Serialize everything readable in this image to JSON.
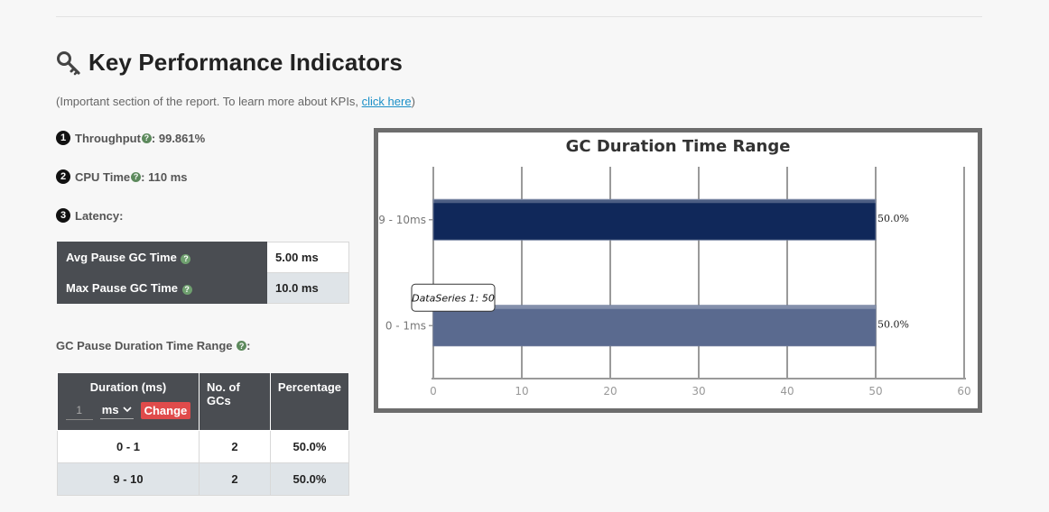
{
  "header": {
    "title": "Key Performance Indicators",
    "intro_prefix": "(Important section of the report. To learn more about KPIs, ",
    "intro_link": "click here",
    "intro_suffix": ")"
  },
  "kpis": {
    "throughput": {
      "num": "1",
      "label": "Throughput",
      "value": " : 99.861%"
    },
    "cpu": {
      "num": "2",
      "label": "CPU Time",
      "value": " : 110 ms"
    },
    "latency": {
      "num": "3",
      "label": "Latency:"
    }
  },
  "latency_table": [
    {
      "label": "Avg Pause GC Time",
      "value": "5.00 ms"
    },
    {
      "label": "Max Pause GC Time",
      "value": "10.0 ms"
    }
  ],
  "range_section": {
    "title": "GC Pause Duration Time Range",
    "title_suffix": ":"
  },
  "gc_table": {
    "headers": {
      "duration": "Duration (ms)",
      "count": "No. of GCs",
      "percentage": "Percentage"
    },
    "input_value": "1",
    "unit_selected": "ms",
    "change_label": "Change",
    "rows": [
      {
        "range": "0 - 1",
        "count": "2",
        "pct": "50.0%"
      },
      {
        "range": "9 - 10",
        "count": "2",
        "pct": "50.0%"
      }
    ]
  },
  "chart_data": {
    "type": "bar",
    "orientation": "horizontal",
    "title": "GC Duration Time Range",
    "categories": [
      "9 - 10ms",
      "0 - 1ms"
    ],
    "series": [
      {
        "name": "DataSeries 1",
        "values": [
          50,
          50
        ]
      }
    ],
    "data_labels": [
      "50.0%",
      "50.0%"
    ],
    "xlim": [
      0,
      60
    ],
    "xticks": [
      0,
      10,
      20,
      30,
      40,
      50,
      60
    ],
    "grid": true,
    "colors": [
      "#10285a",
      "#5a6a8f"
    ],
    "tooltip": "DataSeries 1: 50"
  }
}
